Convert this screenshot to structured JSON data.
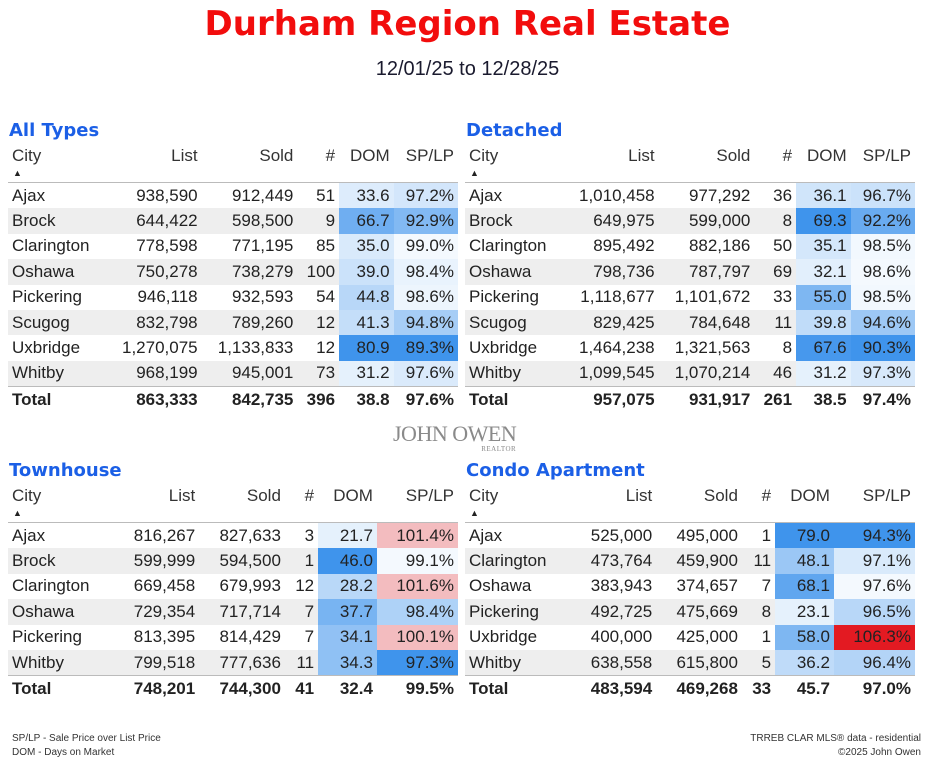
{
  "header": {
    "title": "Durham Region Real Estate",
    "date_from": "12/01/25",
    "date_sep": "to",
    "date_to": "12/28/25"
  },
  "columns": [
    "City",
    "List",
    "Sold",
    "#",
    "DOM",
    "SP/LP"
  ],
  "colors": {
    "title": "#f20d0d",
    "heading": "#1b5fe6",
    "dom_scale_max": "#2a88ea",
    "splp_high": "#e31a22"
  },
  "tables": [
    {
      "id": "all-types",
      "title": "All Types",
      "rows": [
        [
          "Ajax",
          "938,590",
          "912,449",
          "51",
          "33.6",
          "97.2%"
        ],
        [
          "Brock",
          "644,422",
          "598,500",
          "9",
          "66.7",
          "92.9%"
        ],
        [
          "Clarington",
          "778,598",
          "771,195",
          "85",
          "35.0",
          "99.0%"
        ],
        [
          "Oshawa",
          "750,278",
          "738,279",
          "100",
          "39.0",
          "98.4%"
        ],
        [
          "Pickering",
          "946,118",
          "932,593",
          "54",
          "44.8",
          "98.6%"
        ],
        [
          "Scugog",
          "832,798",
          "789,260",
          "12",
          "41.3",
          "94.8%"
        ],
        [
          "Uxbridge",
          "1,270,075",
          "1,133,833",
          "12",
          "80.9",
          "89.3%"
        ],
        [
          "Whitby",
          "968,199",
          "945,001",
          "73",
          "31.2",
          "97.6%"
        ]
      ],
      "total": [
        "Total",
        "863,333",
        "842,735",
        "396",
        "38.8",
        "97.6%"
      ]
    },
    {
      "id": "detached",
      "title": "Detached",
      "rows": [
        [
          "Ajax",
          "1,010,458",
          "977,292",
          "36",
          "36.1",
          "96.7%"
        ],
        [
          "Brock",
          "649,975",
          "599,000",
          "8",
          "69.3",
          "92.2%"
        ],
        [
          "Clarington",
          "895,492",
          "882,186",
          "50",
          "35.1",
          "98.5%"
        ],
        [
          "Oshawa",
          "798,736",
          "787,797",
          "69",
          "32.1",
          "98.6%"
        ],
        [
          "Pickering",
          "1,118,677",
          "1,101,672",
          "33",
          "55.0",
          "98.5%"
        ],
        [
          "Scugog",
          "829,425",
          "784,648",
          "11",
          "39.8",
          "94.6%"
        ],
        [
          "Uxbridge",
          "1,464,238",
          "1,321,563",
          "8",
          "67.6",
          "90.3%"
        ],
        [
          "Whitby",
          "1,099,545",
          "1,070,214",
          "46",
          "31.2",
          "97.3%"
        ]
      ],
      "total": [
        "Total",
        "957,075",
        "931,917",
        "261",
        "38.5",
        "97.4%"
      ]
    },
    {
      "id": "townhouse",
      "title": "Townhouse",
      "rows": [
        [
          "Ajax",
          "816,267",
          "827,633",
          "3",
          "21.7",
          "101.4%"
        ],
        [
          "Brock",
          "599,999",
          "594,500",
          "1",
          "46.0",
          "99.1%"
        ],
        [
          "Clarington",
          "669,458",
          "679,993",
          "12",
          "28.2",
          "101.6%"
        ],
        [
          "Oshawa",
          "729,354",
          "717,714",
          "7",
          "37.7",
          "98.4%"
        ],
        [
          "Pickering",
          "813,395",
          "814,429",
          "7",
          "34.1",
          "100.1%"
        ],
        [
          "Whitby",
          "799,518",
          "777,636",
          "11",
          "34.3",
          "97.3%"
        ]
      ],
      "total": [
        "Total",
        "748,201",
        "744,300",
        "41",
        "32.4",
        "99.5%"
      ]
    },
    {
      "id": "condo-apartment",
      "title": "Condo Apartment",
      "rows": [
        [
          "Ajax",
          "525,000",
          "495,000",
          "1",
          "79.0",
          "94.3%"
        ],
        [
          "Clarington",
          "473,764",
          "459,900",
          "11",
          "48.1",
          "97.1%"
        ],
        [
          "Oshawa",
          "383,943",
          "374,657",
          "7",
          "68.1",
          "97.6%"
        ],
        [
          "Pickering",
          "492,725",
          "475,669",
          "8",
          "23.1",
          "96.5%"
        ],
        [
          "Uxbridge",
          "400,000",
          "425,000",
          "1",
          "58.0",
          "106.3%"
        ],
        [
          "Whitby",
          "638,558",
          "615,800",
          "5",
          "36.2",
          "96.4%"
        ]
      ],
      "total": [
        "Total",
        "483,594",
        "469,268",
        "33",
        "45.7",
        "97.0%"
      ]
    }
  ],
  "logo": {
    "name": "JOHN OWEN",
    "sub": "REALTOR"
  },
  "footer": {
    "legend1": "SP/LP - Sale Price over List Price",
    "legend2": "DOM - Days on Market",
    "source": "TRREB CLAR MLS® data - residential",
    "copyright": "©2025 John Owen"
  }
}
